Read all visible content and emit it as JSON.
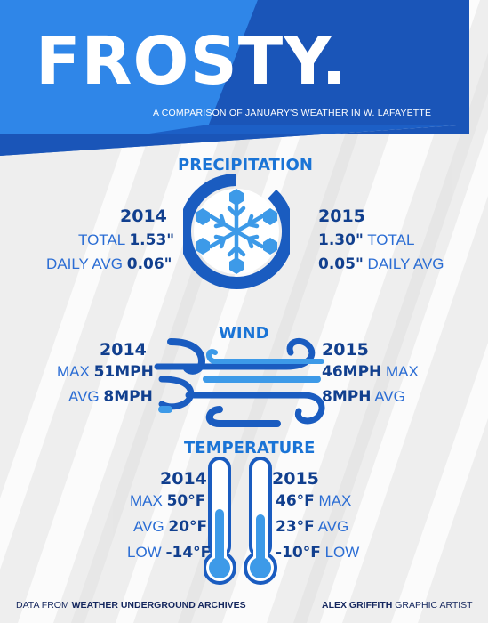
{
  "header": {
    "title": "FROSTY.",
    "subtitle": "A COMPARISON OF JANUARY'S WEATHER IN W. LAFAYETTE"
  },
  "precipitation": {
    "heading": "PRECIPITATION",
    "year_2014": "2014",
    "year_2015": "2015",
    "total_label": "TOTAL",
    "daily_avg_label": "DAILY AVG",
    "total_2014": "1.53\"",
    "daily_avg_2014": "0.06\"",
    "total_2015": "1.30\"",
    "daily_avg_2015": "0.05\""
  },
  "wind": {
    "heading": "WIND",
    "year_2014": "2014",
    "year_2015": "2015",
    "max_label": "MAX",
    "avg_label": "AVG",
    "max_2014": "51MPH",
    "avg_2014": "8MPH",
    "max_2015": "46MPH",
    "avg_2015": "8MPH"
  },
  "temperature": {
    "heading": "TEMPERATURE",
    "year_2014": "2014",
    "year_2015": "2015",
    "max_label": "MAX",
    "avg_label": "AVG",
    "low_label": "LOW",
    "max_2014": "50°F",
    "avg_2014": "20°F",
    "low_2014": "-14°F",
    "max_2015": "46°F",
    "avg_2015": "23°F",
    "low_2015": "-10°F"
  },
  "footer": {
    "source_prefix": "DATA FROM ",
    "source_name": "WEATHER UNDERGROUND ARCHIVES",
    "artist_name": "ALEX GRIFFITH",
    "artist_role": " GRAPHIC ARTIST"
  },
  "icons": {
    "precipitation": "snowflake-icon",
    "wind": "wind-gust-icon",
    "temperature": "thermometer-icon"
  },
  "colors": {
    "banner_light": "#2f86e8",
    "banner_dark": "#1b5fc4",
    "heading_blue": "#1a74d6",
    "navy": "#113f8e",
    "text_blue": "#2b6dd4",
    "light_blue": "#4aa4f0"
  }
}
